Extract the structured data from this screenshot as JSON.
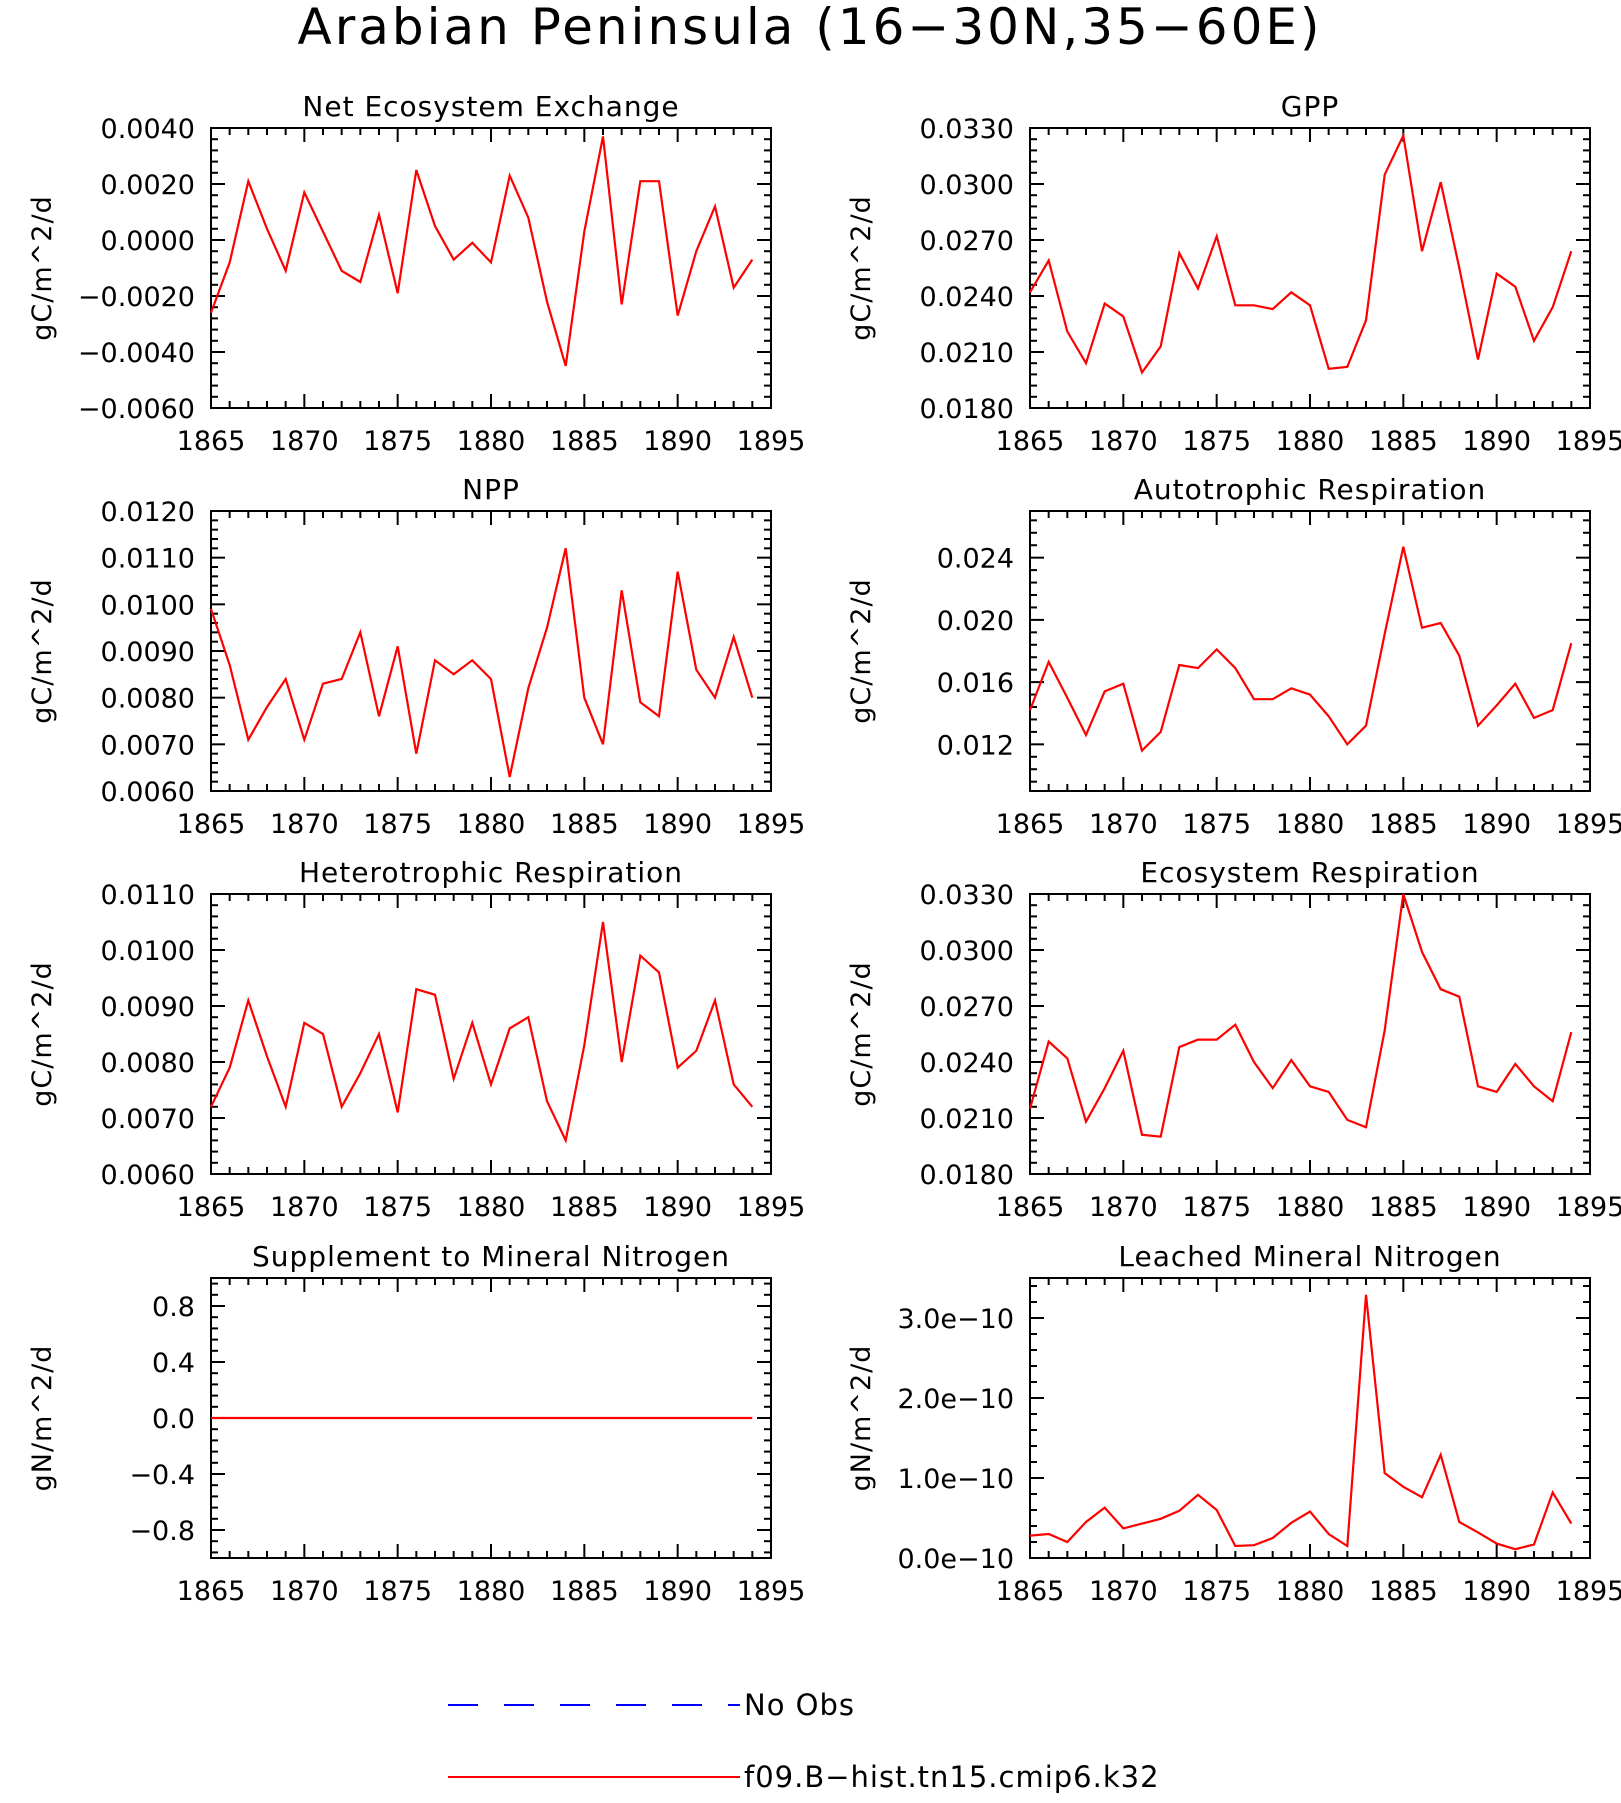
{
  "figure": {
    "title": "Arabian Peninsula (16−30N,35−60E)",
    "legend": [
      {
        "label": "No Obs",
        "color": "#0000ff",
        "style": "dashed"
      },
      {
        "label": "f09.B−hist.tn15.cmip6.k32",
        "color": "#ff0000",
        "style": "solid"
      }
    ],
    "colors": {
      "series": "#ff0000",
      "obs": "#0000ff",
      "axis": "#000000"
    }
  },
  "chart_data": [
    {
      "type": "line",
      "title": "Net Ecosystem Exchange",
      "ylabel": "gC/m^2/d",
      "xlim": [
        1865,
        1895
      ],
      "ylim": [
        -0.006,
        0.004
      ],
      "xticks": [
        1865,
        1870,
        1875,
        1880,
        1885,
        1890,
        1895
      ],
      "xtick_labels": [
        "1865",
        "1870",
        "1875",
        "1880",
        "1885",
        "1890",
        "1895"
      ],
      "yticks": [
        -0.006,
        -0.004,
        -0.002,
        0,
        0.002,
        0.004
      ],
      "ytick_labels": [
        "−0.0060",
        "−0.0040",
        "−0.0020",
        "0.0000",
        "0.0020",
        "0.0040"
      ],
      "x": [
        1865,
        1866,
        1867,
        1868,
        1869,
        1870,
        1871,
        1872,
        1873,
        1874,
        1875,
        1876,
        1877,
        1878,
        1879,
        1880,
        1881,
        1882,
        1883,
        1884,
        1885,
        1886,
        1887,
        1888,
        1889,
        1890,
        1891,
        1892,
        1893,
        1894
      ],
      "series": [
        {
          "name": "f09.B−hist.tn15.cmip6.k32",
          "values": [
            -0.0026,
            -0.0008,
            0.0021,
            0.0004,
            -0.0011,
            0.0017,
            0.0003,
            -0.0011,
            -0.0015,
            0.0009,
            -0.0019,
            0.0025,
            0.0005,
            -0.0007,
            -0.0001,
            -0.0008,
            0.0023,
            0.0008,
            -0.0022,
            -0.0045,
            0.0003,
            0.0037,
            -0.0023,
            0.0021,
            0.0021,
            -0.0027,
            -0.0004,
            0.0012,
            -0.0017,
            -0.0007
          ]
        }
      ]
    },
    {
      "type": "line",
      "title": "GPP",
      "ylabel": "gC/m^2/d",
      "xlim": [
        1865,
        1895
      ],
      "ylim": [
        0.018,
        0.033
      ],
      "xticks": [
        1865,
        1870,
        1875,
        1880,
        1885,
        1890,
        1895
      ],
      "xtick_labels": [
        "1865",
        "1870",
        "1875",
        "1880",
        "1885",
        "1890",
        "1895"
      ],
      "yticks": [
        0.018,
        0.021,
        0.024,
        0.027,
        0.03,
        0.033
      ],
      "ytick_labels": [
        "0.0180",
        "0.0210",
        "0.0240",
        "0.0270",
        "0.0300",
        "0.0330"
      ],
      "x": [
        1865,
        1866,
        1867,
        1868,
        1869,
        1870,
        1871,
        1872,
        1873,
        1874,
        1875,
        1876,
        1877,
        1878,
        1879,
        1880,
        1881,
        1882,
        1883,
        1884,
        1885,
        1886,
        1887,
        1888,
        1889,
        1890,
        1891,
        1892,
        1893,
        1894
      ],
      "series": [
        {
          "name": "f09.B−hist.tn15.cmip6.k32",
          "values": [
            0.0242,
            0.0259,
            0.0221,
            0.0204,
            0.0236,
            0.0229,
            0.0199,
            0.0213,
            0.0263,
            0.0244,
            0.0272,
            0.0235,
            0.0235,
            0.0233,
            0.0242,
            0.0235,
            0.0201,
            0.0202,
            0.0227,
            0.0305,
            0.0326,
            0.0264,
            0.0301,
            0.0255,
            0.0206,
            0.0252,
            0.0245,
            0.0216,
            0.0234,
            0.0264
          ]
        }
      ]
    },
    {
      "type": "line",
      "title": "NPP",
      "ylabel": "gC/m^2/d",
      "xlim": [
        1865,
        1895
      ],
      "ylim": [
        0.006,
        0.012
      ],
      "xticks": [
        1865,
        1870,
        1875,
        1880,
        1885,
        1890,
        1895
      ],
      "xtick_labels": [
        "1865",
        "1870",
        "1875",
        "1880",
        "1885",
        "1890",
        "1895"
      ],
      "yticks": [
        0.006,
        0.007,
        0.008,
        0.009,
        0.01,
        0.011,
        0.012
      ],
      "ytick_labels": [
        "0.0060",
        "0.0070",
        "0.0080",
        "0.0090",
        "0.0100",
        "0.0110",
        "0.0120"
      ],
      "x": [
        1865,
        1866,
        1867,
        1868,
        1869,
        1870,
        1871,
        1872,
        1873,
        1874,
        1875,
        1876,
        1877,
        1878,
        1879,
        1880,
        1881,
        1882,
        1883,
        1884,
        1885,
        1886,
        1887,
        1888,
        1889,
        1890,
        1891,
        1892,
        1893,
        1894
      ],
      "series": [
        {
          "name": "f09.B−hist.tn15.cmip6.k32",
          "values": [
            0.0099,
            0.0087,
            0.0071,
            0.0078,
            0.0084,
            0.0071,
            0.0083,
            0.0084,
            0.0094,
            0.0076,
            0.0091,
            0.0068,
            0.0088,
            0.0085,
            0.0088,
            0.0084,
            0.0063,
            0.0082,
            0.0095,
            0.0112,
            0.008,
            0.007,
            0.0103,
            0.0079,
            0.0076,
            0.0107,
            0.0086,
            0.008,
            0.0093,
            0.008
          ]
        }
      ]
    },
    {
      "type": "line",
      "title": "Autotrophic Respiration",
      "ylabel": "gC/m^2/d",
      "xlim": [
        1865,
        1895
      ],
      "ylim": [
        0.009,
        0.027
      ],
      "xticks": [
        1865,
        1870,
        1875,
        1880,
        1885,
        1890,
        1895
      ],
      "xtick_labels": [
        "1865",
        "1870",
        "1875",
        "1880",
        "1885",
        "1890",
        "1895"
      ],
      "yticks": [
        0.012,
        0.016,
        0.02,
        0.024
      ],
      "ytick_labels": [
        "0.012",
        "0.016",
        "0.020",
        "0.024"
      ],
      "x": [
        1865,
        1866,
        1867,
        1868,
        1869,
        1870,
        1871,
        1872,
        1873,
        1874,
        1875,
        1876,
        1877,
        1878,
        1879,
        1880,
        1881,
        1882,
        1883,
        1884,
        1885,
        1886,
        1887,
        1888,
        1889,
        1890,
        1891,
        1892,
        1893,
        1894
      ],
      "series": [
        {
          "name": "f09.B−hist.tn15.cmip6.k32",
          "values": [
            0.0142,
            0.0173,
            0.015,
            0.0126,
            0.0154,
            0.0159,
            0.0116,
            0.0128,
            0.0171,
            0.0169,
            0.0181,
            0.0169,
            0.0149,
            0.0149,
            0.0156,
            0.0152,
            0.0138,
            0.012,
            0.0132,
            0.0191,
            0.0247,
            0.0195,
            0.0198,
            0.0177,
            0.0132,
            0.0145,
            0.0159,
            0.0137,
            0.0142,
            0.0185
          ]
        }
      ]
    },
    {
      "type": "line",
      "title": "Heterotrophic Respiration",
      "ylabel": "gC/m^2/d",
      "xlim": [
        1865,
        1895
      ],
      "ylim": [
        0.006,
        0.011
      ],
      "xticks": [
        1865,
        1870,
        1875,
        1880,
        1885,
        1890,
        1895
      ],
      "xtick_labels": [
        "1865",
        "1870",
        "1875",
        "1880",
        "1885",
        "1890",
        "1895"
      ],
      "yticks": [
        0.006,
        0.007,
        0.008,
        0.009,
        0.01,
        0.011
      ],
      "ytick_labels": [
        "0.0060",
        "0.0070",
        "0.0080",
        "0.0090",
        "0.0100",
        "0.0110"
      ],
      "x": [
        1865,
        1866,
        1867,
        1868,
        1869,
        1870,
        1871,
        1872,
        1873,
        1874,
        1875,
        1876,
        1877,
        1878,
        1879,
        1880,
        1881,
        1882,
        1883,
        1884,
        1885,
        1886,
        1887,
        1888,
        1889,
        1890,
        1891,
        1892,
        1893,
        1894
      ],
      "series": [
        {
          "name": "f09.B−hist.tn15.cmip6.k32",
          "values": [
            0.0072,
            0.0079,
            0.0091,
            0.0081,
            0.0072,
            0.0087,
            0.0085,
            0.0072,
            0.0078,
            0.0085,
            0.0071,
            0.0093,
            0.0092,
            0.0077,
            0.0087,
            0.0076,
            0.0086,
            0.0088,
            0.0073,
            0.0066,
            0.0083,
            0.0105,
            0.008,
            0.0099,
            0.0096,
            0.0079,
            0.0082,
            0.0091,
            0.0076,
            0.0072
          ]
        }
      ]
    },
    {
      "type": "line",
      "title": "Ecosystem Respiration",
      "ylabel": "gC/m^2/d",
      "xlim": [
        1865,
        1895
      ],
      "ylim": [
        0.018,
        0.033
      ],
      "xticks": [
        1865,
        1870,
        1875,
        1880,
        1885,
        1890,
        1895
      ],
      "xtick_labels": [
        "1865",
        "1870",
        "1875",
        "1880",
        "1885",
        "1890",
        "1895"
      ],
      "yticks": [
        0.018,
        0.021,
        0.024,
        0.027,
        0.03,
        0.033
      ],
      "ytick_labels": [
        "0.0180",
        "0.0210",
        "0.0240",
        "0.0270",
        "0.0300",
        "0.0330"
      ],
      "x": [
        1865,
        1866,
        1867,
        1868,
        1869,
        1870,
        1871,
        1872,
        1873,
        1874,
        1875,
        1876,
        1877,
        1878,
        1879,
        1880,
        1881,
        1882,
        1883,
        1884,
        1885,
        1886,
        1887,
        1888,
        1889,
        1890,
        1891,
        1892,
        1893,
        1894
      ],
      "series": [
        {
          "name": "f09.B−hist.tn15.cmip6.k32",
          "values": [
            0.0215,
            0.0251,
            0.0242,
            0.0208,
            0.0226,
            0.0246,
            0.0201,
            0.02,
            0.0248,
            0.0252,
            0.0252,
            0.026,
            0.024,
            0.0226,
            0.0241,
            0.0227,
            0.0224,
            0.0209,
            0.0205,
            0.0257,
            0.033,
            0.0299,
            0.0279,
            0.0275,
            0.0227,
            0.0224,
            0.0239,
            0.0227,
            0.0219,
            0.0256
          ]
        }
      ]
    },
    {
      "type": "line",
      "title": "Supplement to Mineral Nitrogen",
      "ylabel": "gN/m^2/d",
      "xlim": [
        1865,
        1895
      ],
      "ylim": [
        -1,
        1
      ],
      "xticks": [
        1865,
        1870,
        1875,
        1880,
        1885,
        1890,
        1895
      ],
      "xtick_labels": [
        "1865",
        "1870",
        "1875",
        "1880",
        "1885",
        "1890",
        "1895"
      ],
      "yticks": [
        -0.8,
        -0.4,
        0,
        0.4,
        0.8
      ],
      "ytick_labels": [
        "−0.8",
        "−0.4",
        "0.0",
        "0.4",
        "0.8"
      ],
      "x": [
        1865,
        1866,
        1867,
        1868,
        1869,
        1870,
        1871,
        1872,
        1873,
        1874,
        1875,
        1876,
        1877,
        1878,
        1879,
        1880,
        1881,
        1882,
        1883,
        1884,
        1885,
        1886,
        1887,
        1888,
        1889,
        1890,
        1891,
        1892,
        1893,
        1894
      ],
      "series": [
        {
          "name": "f09.B−hist.tn15.cmip6.k32",
          "values": [
            0,
            0,
            0,
            0,
            0,
            0,
            0,
            0,
            0,
            0,
            0,
            0,
            0,
            0,
            0,
            0,
            0,
            0,
            0,
            0,
            0,
            0,
            0,
            0,
            0,
            0,
            0,
            0,
            0,
            0
          ]
        }
      ]
    },
    {
      "type": "line",
      "title": "Leached Mineral Nitrogen",
      "ylabel": "gN/m^2/d",
      "xlim": [
        1865,
        1895
      ],
      "ylim": [
        0,
        3.5e-10
      ],
      "xticks": [
        1865,
        1870,
        1875,
        1880,
        1885,
        1890,
        1895
      ],
      "xtick_labels": [
        "1865",
        "1870",
        "1875",
        "1880",
        "1885",
        "1890",
        "1895"
      ],
      "yticks": [
        0,
        1e-10,
        2e-10,
        3e-10
      ],
      "ytick_labels": [
        "0.0e−10",
        "1.0e−10",
        "2.0e−10",
        "3.0e−10"
      ],
      "x": [
        1865,
        1866,
        1867,
        1868,
        1869,
        1870,
        1871,
        1872,
        1873,
        1874,
        1875,
        1876,
        1877,
        1878,
        1879,
        1880,
        1881,
        1882,
        1883,
        1884,
        1885,
        1886,
        1887,
        1888,
        1889,
        1890,
        1891,
        1892,
        1893,
        1894
      ],
      "series": [
        {
          "name": "f09.B−hist.tn15.cmip6.k32",
          "values": [
            2.8e-11,
            3e-11,
            2e-11,
            4.5e-11,
            6.3e-11,
            3.7e-11,
            4.3e-11,
            4.9e-11,
            5.9e-11,
            7.9e-11,
            6e-11,
            1.5e-11,
            1.6e-11,
            2.5e-11,
            4.4e-11,
            5.8e-11,
            3e-11,
            1.5e-11,
            3.29e-10,
            1.06e-10,
            8.9e-11,
            7.6e-11,
            1.29e-10,
            4.5e-11,
            3.2e-11,
            1.8e-11,
            1.1e-11,
            1.7e-11,
            8.2e-11,
            4.3e-11
          ]
        }
      ]
    }
  ]
}
